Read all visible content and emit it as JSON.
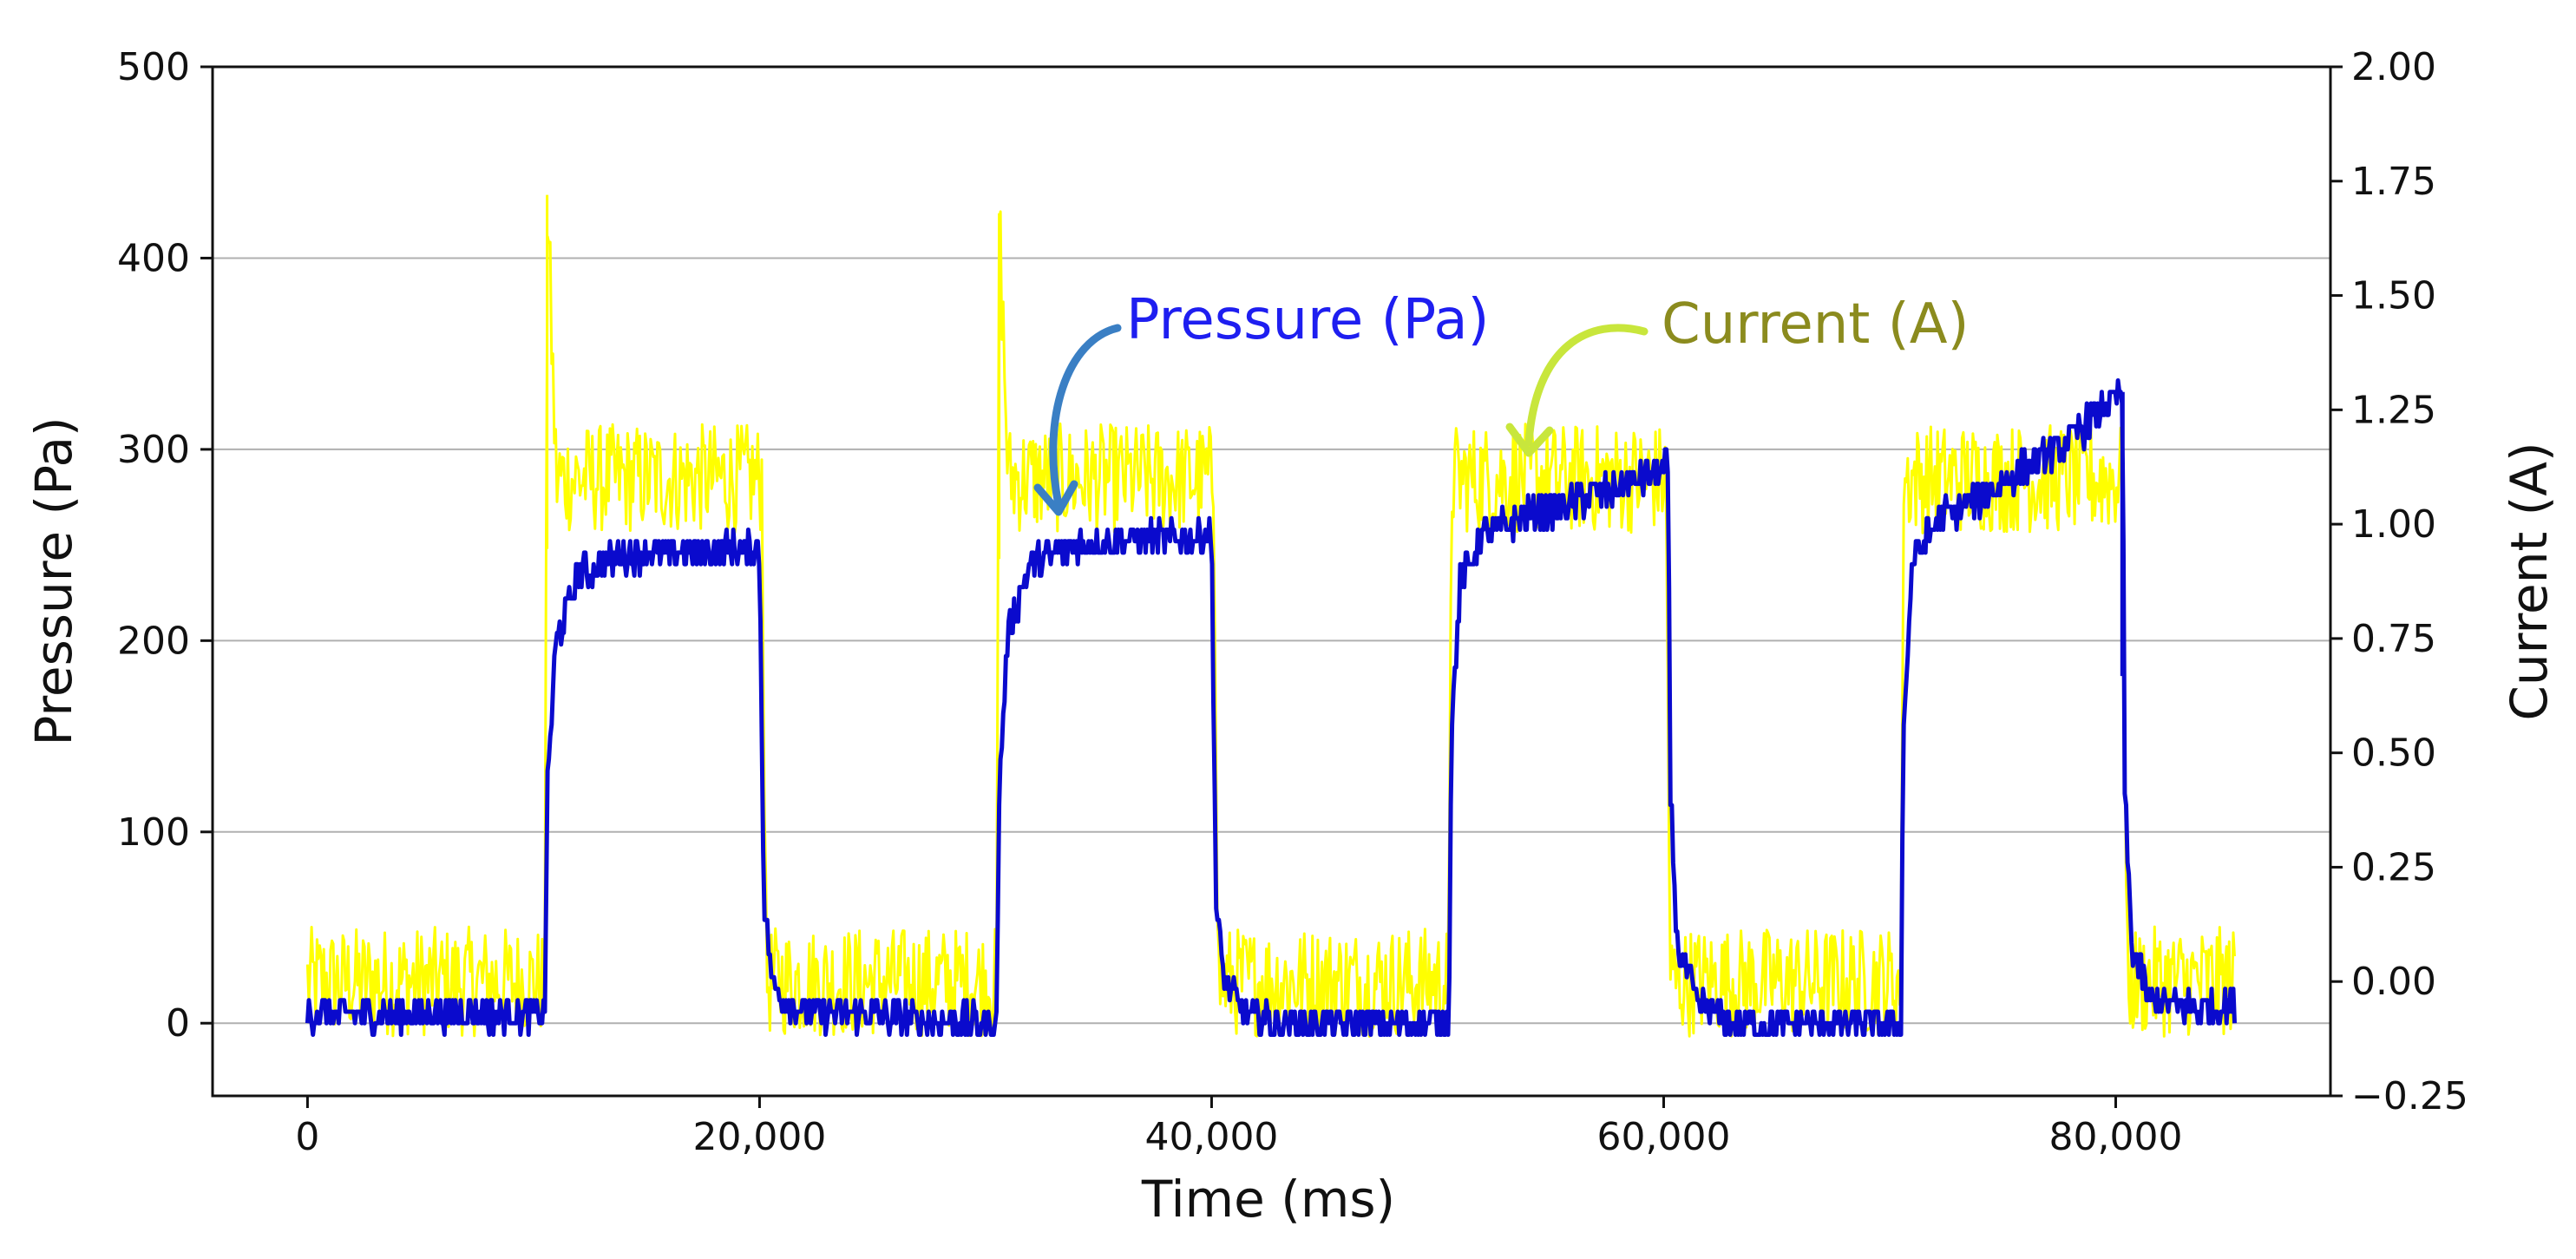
{
  "chart_data": {
    "type": "line",
    "title": "",
    "xlabel": "Time (ms)",
    "ylabel_left": "Pressure (Pa)",
    "ylabel_right": "Current (A)",
    "xlim": [
      -4200,
      89500
    ],
    "ylim_left": [
      -38,
      500
    ],
    "ylim_right": [
      -0.25,
      2.0
    ],
    "grid": "horizontal",
    "x_ticks": [
      0,
      20000,
      40000,
      60000,
      80000
    ],
    "x_tick_labels": [
      "0",
      "20,000",
      "40,000",
      "60,000",
      "80,000"
    ],
    "y_left_ticks": [
      0,
      100,
      200,
      300,
      400,
      500
    ],
    "y_left_tick_labels": [
      "0",
      "100",
      "200",
      "300",
      "400",
      "500"
    ],
    "y_right_ticks": [
      -0.25,
      0.0,
      0.25,
      0.5,
      0.75,
      1.0,
      1.25,
      1.5,
      1.75,
      2.0
    ],
    "y_right_tick_labels": [
      "−0.25",
      "0.00",
      "0.25",
      "0.50",
      "0.75",
      "1.00",
      "1.25",
      "1.50",
      "1.75",
      "2.00"
    ],
    "series": [
      {
        "name": "Current (A)",
        "axis": "right",
        "color": "#ffff00",
        "x": [
          0,
          10500,
          10600,
          11000,
          20100,
          20300,
          30500,
          30600,
          31000,
          40100,
          40300,
          50500,
          50600,
          51000,
          60100,
          60300,
          70500,
          70600,
          71000,
          80300,
          80500,
          85300
        ],
        "y": [
          0.0,
          0.0,
          1.72,
          1.1,
          1.1,
          0.0,
          0.0,
          1.68,
          1.1,
          1.1,
          0.0,
          0.0,
          1.1,
          1.1,
          1.1,
          0.0,
          0.0,
          1.1,
          1.1,
          1.1,
          0.0,
          0.0
        ]
      },
      {
        "name": "Pressure (Pa)",
        "axis": "left",
        "color": "#0a0acd",
        "x": [
          0,
          10500,
          10600,
          11000,
          12000,
          14000,
          20000,
          20200,
          20600,
          21500,
          23000,
          30500,
          30600,
          31000,
          32000,
          34000,
          40000,
          40200,
          40600,
          41500,
          43000,
          50500,
          50600,
          51000,
          52000,
          54000,
          58000,
          60200,
          60300,
          60600,
          61500,
          63000,
          70500,
          70600,
          71000,
          72000,
          74000,
          78000,
          80300,
          80400,
          80700,
          81500,
          83000,
          85300
        ],
        "y": [
          5,
          5,
          120,
          200,
          235,
          245,
          248,
          60,
          20,
          8,
          5,
          0,
          120,
          205,
          240,
          250,
          255,
          60,
          20,
          5,
          0,
          0,
          150,
          230,
          255,
          265,
          280,
          290,
          120,
          40,
          10,
          0,
          0,
          150,
          240,
          262,
          275,
          305,
          330,
          120,
          40,
          12,
          8,
          8
        ]
      }
    ],
    "annotations": [
      {
        "text": "Pressure (Pa)",
        "color": "#1e1ef0",
        "points_to": "Pressure (Pa)"
      },
      {
        "text": "Current (A)",
        "color": "#8b8b1e",
        "points_to": "Current (A)"
      }
    ]
  }
}
